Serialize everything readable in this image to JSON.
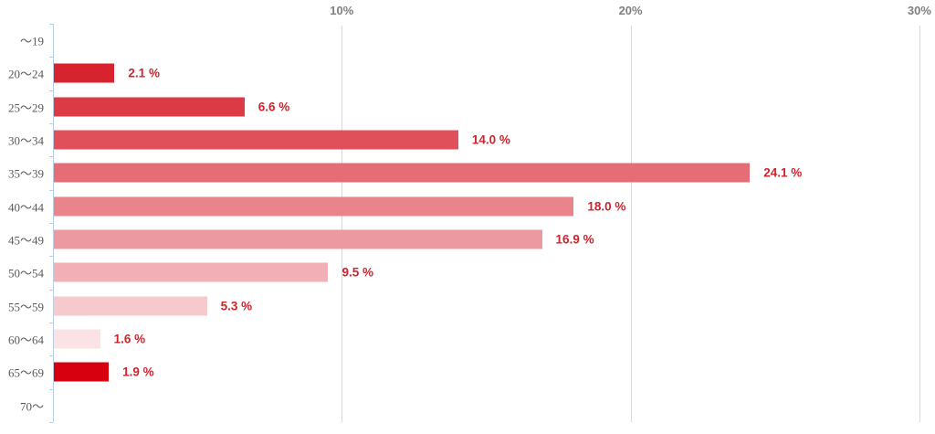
{
  "chart_data": {
    "type": "bar",
    "orientation": "horizontal",
    "title": "",
    "xlabel": "",
    "ylabel": "",
    "xlim": [
      0,
      30
    ],
    "grid": true,
    "legend": false,
    "categories": [
      "～19",
      "20～24",
      "25～29",
      "30～34",
      "35～39",
      "40～44",
      "45～49",
      "50～54",
      "55～59",
      "60～64",
      "65～69",
      "70～"
    ],
    "values": [
      null,
      2.1,
      6.6,
      14.0,
      24.1,
      18.0,
      16.9,
      9.5,
      5.3,
      1.6,
      1.9,
      null
    ],
    "value_labels": [
      "",
      "2.1 %",
      "6.6 %",
      "14.0 %",
      "24.1 %",
      "18.0 %",
      "16.9 %",
      "9.5 %",
      "5.3 %",
      "1.6 %",
      "1.9 %",
      ""
    ],
    "bar_colors": [
      null,
      "#d7232e",
      "#dc3a45",
      "#e0505a",
      "#e56d76",
      "#e9838c",
      "#ed99a1",
      "#f2afb5",
      "#f6c9cd",
      "#fbe3e5",
      "#d7000f",
      null
    ],
    "x_ticks": [
      {
        "label": "10%",
        "value": 10
      },
      {
        "label": "20%",
        "value": 20
      },
      {
        "label": "30%",
        "value": 30
      }
    ],
    "colors": {
      "axis_line": "#b9d0e4",
      "gridline": "#d9d9d9",
      "x_tick_label": "#7f7f7f",
      "category_label": "#595959",
      "value_label": "#cf242d",
      "background": "#ffffff"
    }
  }
}
